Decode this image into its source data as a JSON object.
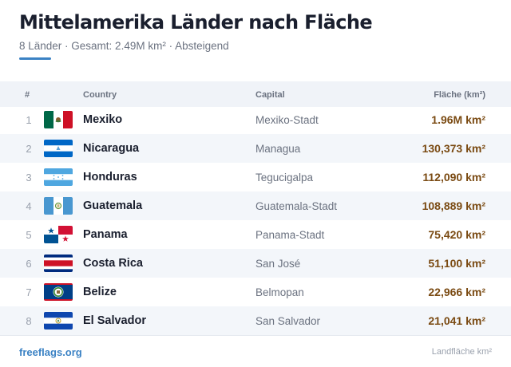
{
  "header": {
    "title": "Mittelamerika Länder nach Fläche",
    "subtitle": "8 Länder · Gesamt: 2.49M km² · Absteigend",
    "accent_color": "#3b82c4"
  },
  "table": {
    "columns": {
      "rank": "#",
      "country": "Country",
      "capital": "Capital",
      "area": "Fläche (km²)"
    },
    "rows": [
      {
        "rank": "1",
        "country": "Mexiko",
        "capital": "Mexiko-Stadt",
        "area": "1.96M km²",
        "flag_icon": "mexico-flag-icon"
      },
      {
        "rank": "2",
        "country": "Nicaragua",
        "capital": "Managua",
        "area": "130,373 km²",
        "flag_icon": "nicaragua-flag-icon"
      },
      {
        "rank": "3",
        "country": "Honduras",
        "capital": "Tegucigalpa",
        "area": "112,090 km²",
        "flag_icon": "honduras-flag-icon"
      },
      {
        "rank": "4",
        "country": "Guatemala",
        "capital": "Guatemala-Stadt",
        "area": "108,889 km²",
        "flag_icon": "guatemala-flag-icon"
      },
      {
        "rank": "5",
        "country": "Panama",
        "capital": "Panama-Stadt",
        "area": "75,420 km²",
        "flag_icon": "panama-flag-icon"
      },
      {
        "rank": "6",
        "country": "Costa Rica",
        "capital": "San José",
        "area": "51,100 km²",
        "flag_icon": "costa-rica-flag-icon"
      },
      {
        "rank": "7",
        "country": "Belize",
        "capital": "Belmopan",
        "area": "22,966 km²",
        "flag_icon": "belize-flag-icon"
      },
      {
        "rank": "8",
        "country": "El Salvador",
        "capital": "San Salvador",
        "area": "21,041 km²",
        "flag_icon": "el-salvador-flag-icon"
      }
    ]
  },
  "footer": {
    "source": "freeflags.org",
    "note": "Landfläche km²"
  },
  "colors": {
    "area_value": "#7a4a12",
    "row_alt": "#f3f6fa",
    "header_bg": "#f0f3f8"
  }
}
